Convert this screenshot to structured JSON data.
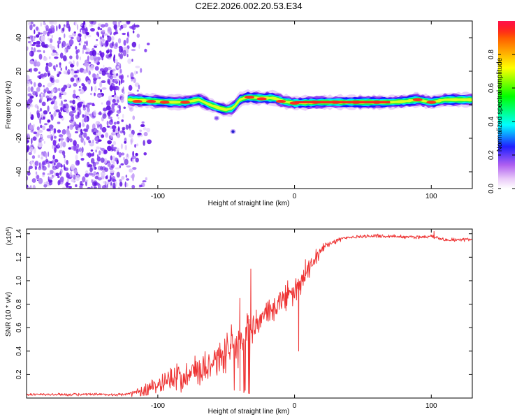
{
  "title": "C2E2.2026.002.20.53.E34",
  "chart_data": [
    {
      "type": "heatmap",
      "name": "spectrogram",
      "xlabel": "Height of straight line (km)",
      "ylabel": "Frequency (Hz)",
      "xlim": [
        -196,
        130
      ],
      "ylim": [
        -50,
        50
      ],
      "xticks": [
        -100,
        0,
        100
      ],
      "yticks": [
        -40,
        -20,
        0,
        20,
        40
      ],
      "ridge": [
        [
          -122,
          3
        ],
        [
          -110,
          2.5
        ],
        [
          -100,
          2
        ],
        [
          -90,
          1.5
        ],
        [
          -80,
          1.5
        ],
        [
          -70,
          3
        ],
        [
          -62,
          0
        ],
        [
          -55,
          -2
        ],
        [
          -50,
          -3
        ],
        [
          -45,
          -2
        ],
        [
          -40,
          3
        ],
        [
          -35,
          4.5
        ],
        [
          -25,
          4
        ],
        [
          -15,
          4
        ],
        [
          -8,
          2
        ],
        [
          0,
          1
        ],
        [
          20,
          1.5
        ],
        [
          40,
          1.5
        ],
        [
          60,
          1.5
        ],
        [
          70,
          1.5
        ],
        [
          80,
          2
        ],
        [
          90,
          3
        ],
        [
          100,
          1.5
        ],
        [
          110,
          3
        ],
        [
          120,
          3
        ],
        [
          130,
          3
        ]
      ],
      "hotspots": [
        [
          -115,
          2
        ],
        [
          -105,
          2
        ],
        [
          -95,
          1.5
        ],
        [
          -80,
          1.5
        ],
        [
          -33,
          4.5
        ],
        [
          -24,
          3.5
        ],
        [
          -10,
          2
        ],
        [
          0,
          1
        ],
        [
          15,
          1.5
        ],
        [
          30,
          1.5
        ],
        [
          45,
          1.5
        ],
        [
          60,
          1.5
        ],
        [
          90,
          3
        ],
        [
          100,
          1.5
        ]
      ],
      "isolated_blobs": [
        [
          -45,
          -16
        ],
        [
          -57,
          -8
        ]
      ],
      "noise_region_x": [
        -196,
        -112
      ],
      "colorbar": {
        "label": "Normalized spectral amplitude",
        "range": [
          0,
          1
        ],
        "ticks": [
          "0.0",
          "0.2",
          "0.4",
          "0.6",
          "0.8"
        ],
        "tick_values": [
          0.0,
          0.2,
          0.4,
          0.6,
          0.8
        ]
      }
    },
    {
      "type": "line",
      "name": "snr",
      "xlabel": "Height of straight line (km)",
      "ylabel": "SNR (10 * v/v)",
      "y_multiplier": "(x10",
      "y_multiplier_exp": "4",
      "y_multiplier_close": ")",
      "xlim": [
        -196,
        130
      ],
      "ylim": [
        0,
        1.44
      ],
      "xticks": [
        -100,
        0,
        100
      ],
      "yticks": [
        0.2,
        0.4,
        0.6,
        0.8,
        1.0,
        1.2,
        1.4
      ],
      "ytick_labels": [
        "0.2",
        "0.4",
        "0.6",
        "0.8",
        "1.0",
        "1.2",
        "1.4"
      ],
      "color": "#ee3333",
      "envelope": [
        [
          -196,
          0.03
        ],
        [
          -150,
          0.03
        ],
        [
          -125,
          0.03
        ],
        [
          -115,
          0.05
        ],
        [
          -105,
          0.1
        ],
        [
          -95,
          0.14
        ],
        [
          -85,
          0.18
        ],
        [
          -75,
          0.22
        ],
        [
          -65,
          0.28
        ],
        [
          -55,
          0.35
        ],
        [
          -45,
          0.42
        ],
        [
          -40,
          0.46
        ],
        [
          -35,
          0.58
        ],
        [
          -30,
          0.62
        ],
        [
          -25,
          0.66
        ],
        [
          -20,
          0.72
        ],
        [
          -15,
          0.78
        ],
        [
          -10,
          0.82
        ],
        [
          -5,
          0.86
        ],
        [
          0,
          0.9
        ],
        [
          5,
          0.98
        ],
        [
          10,
          1.08
        ],
        [
          15,
          1.18
        ],
        [
          20,
          1.27
        ],
        [
          25,
          1.32
        ],
        [
          35,
          1.36
        ],
        [
          50,
          1.38
        ],
        [
          70,
          1.38
        ],
        [
          90,
          1.37
        ],
        [
          100,
          1.38
        ],
        [
          110,
          1.35
        ],
        [
          130,
          1.35
        ]
      ],
      "noise_amplitude": [
        [
          -196,
          0.015
        ],
        [
          -120,
          0.015
        ],
        [
          -110,
          0.06
        ],
        [
          -95,
          0.12
        ],
        [
          -80,
          0.17
        ],
        [
          -60,
          0.2
        ],
        [
          -45,
          0.22
        ],
        [
          -35,
          0.2
        ],
        [
          -25,
          0.16
        ],
        [
          -10,
          0.15
        ],
        [
          5,
          0.12
        ],
        [
          15,
          0.08
        ],
        [
          25,
          0.04
        ],
        [
          40,
          0.02
        ],
        [
          130,
          0.02
        ]
      ],
      "spikes": [
        [
          -32,
          1.1
        ],
        [
          -28,
          0.75
        ],
        [
          -40,
          0.85
        ],
        [
          -5,
          1.0
        ],
        [
          3,
          0.4
        ],
        [
          8,
          1.18
        ],
        [
          102,
          1.42
        ]
      ]
    }
  ]
}
